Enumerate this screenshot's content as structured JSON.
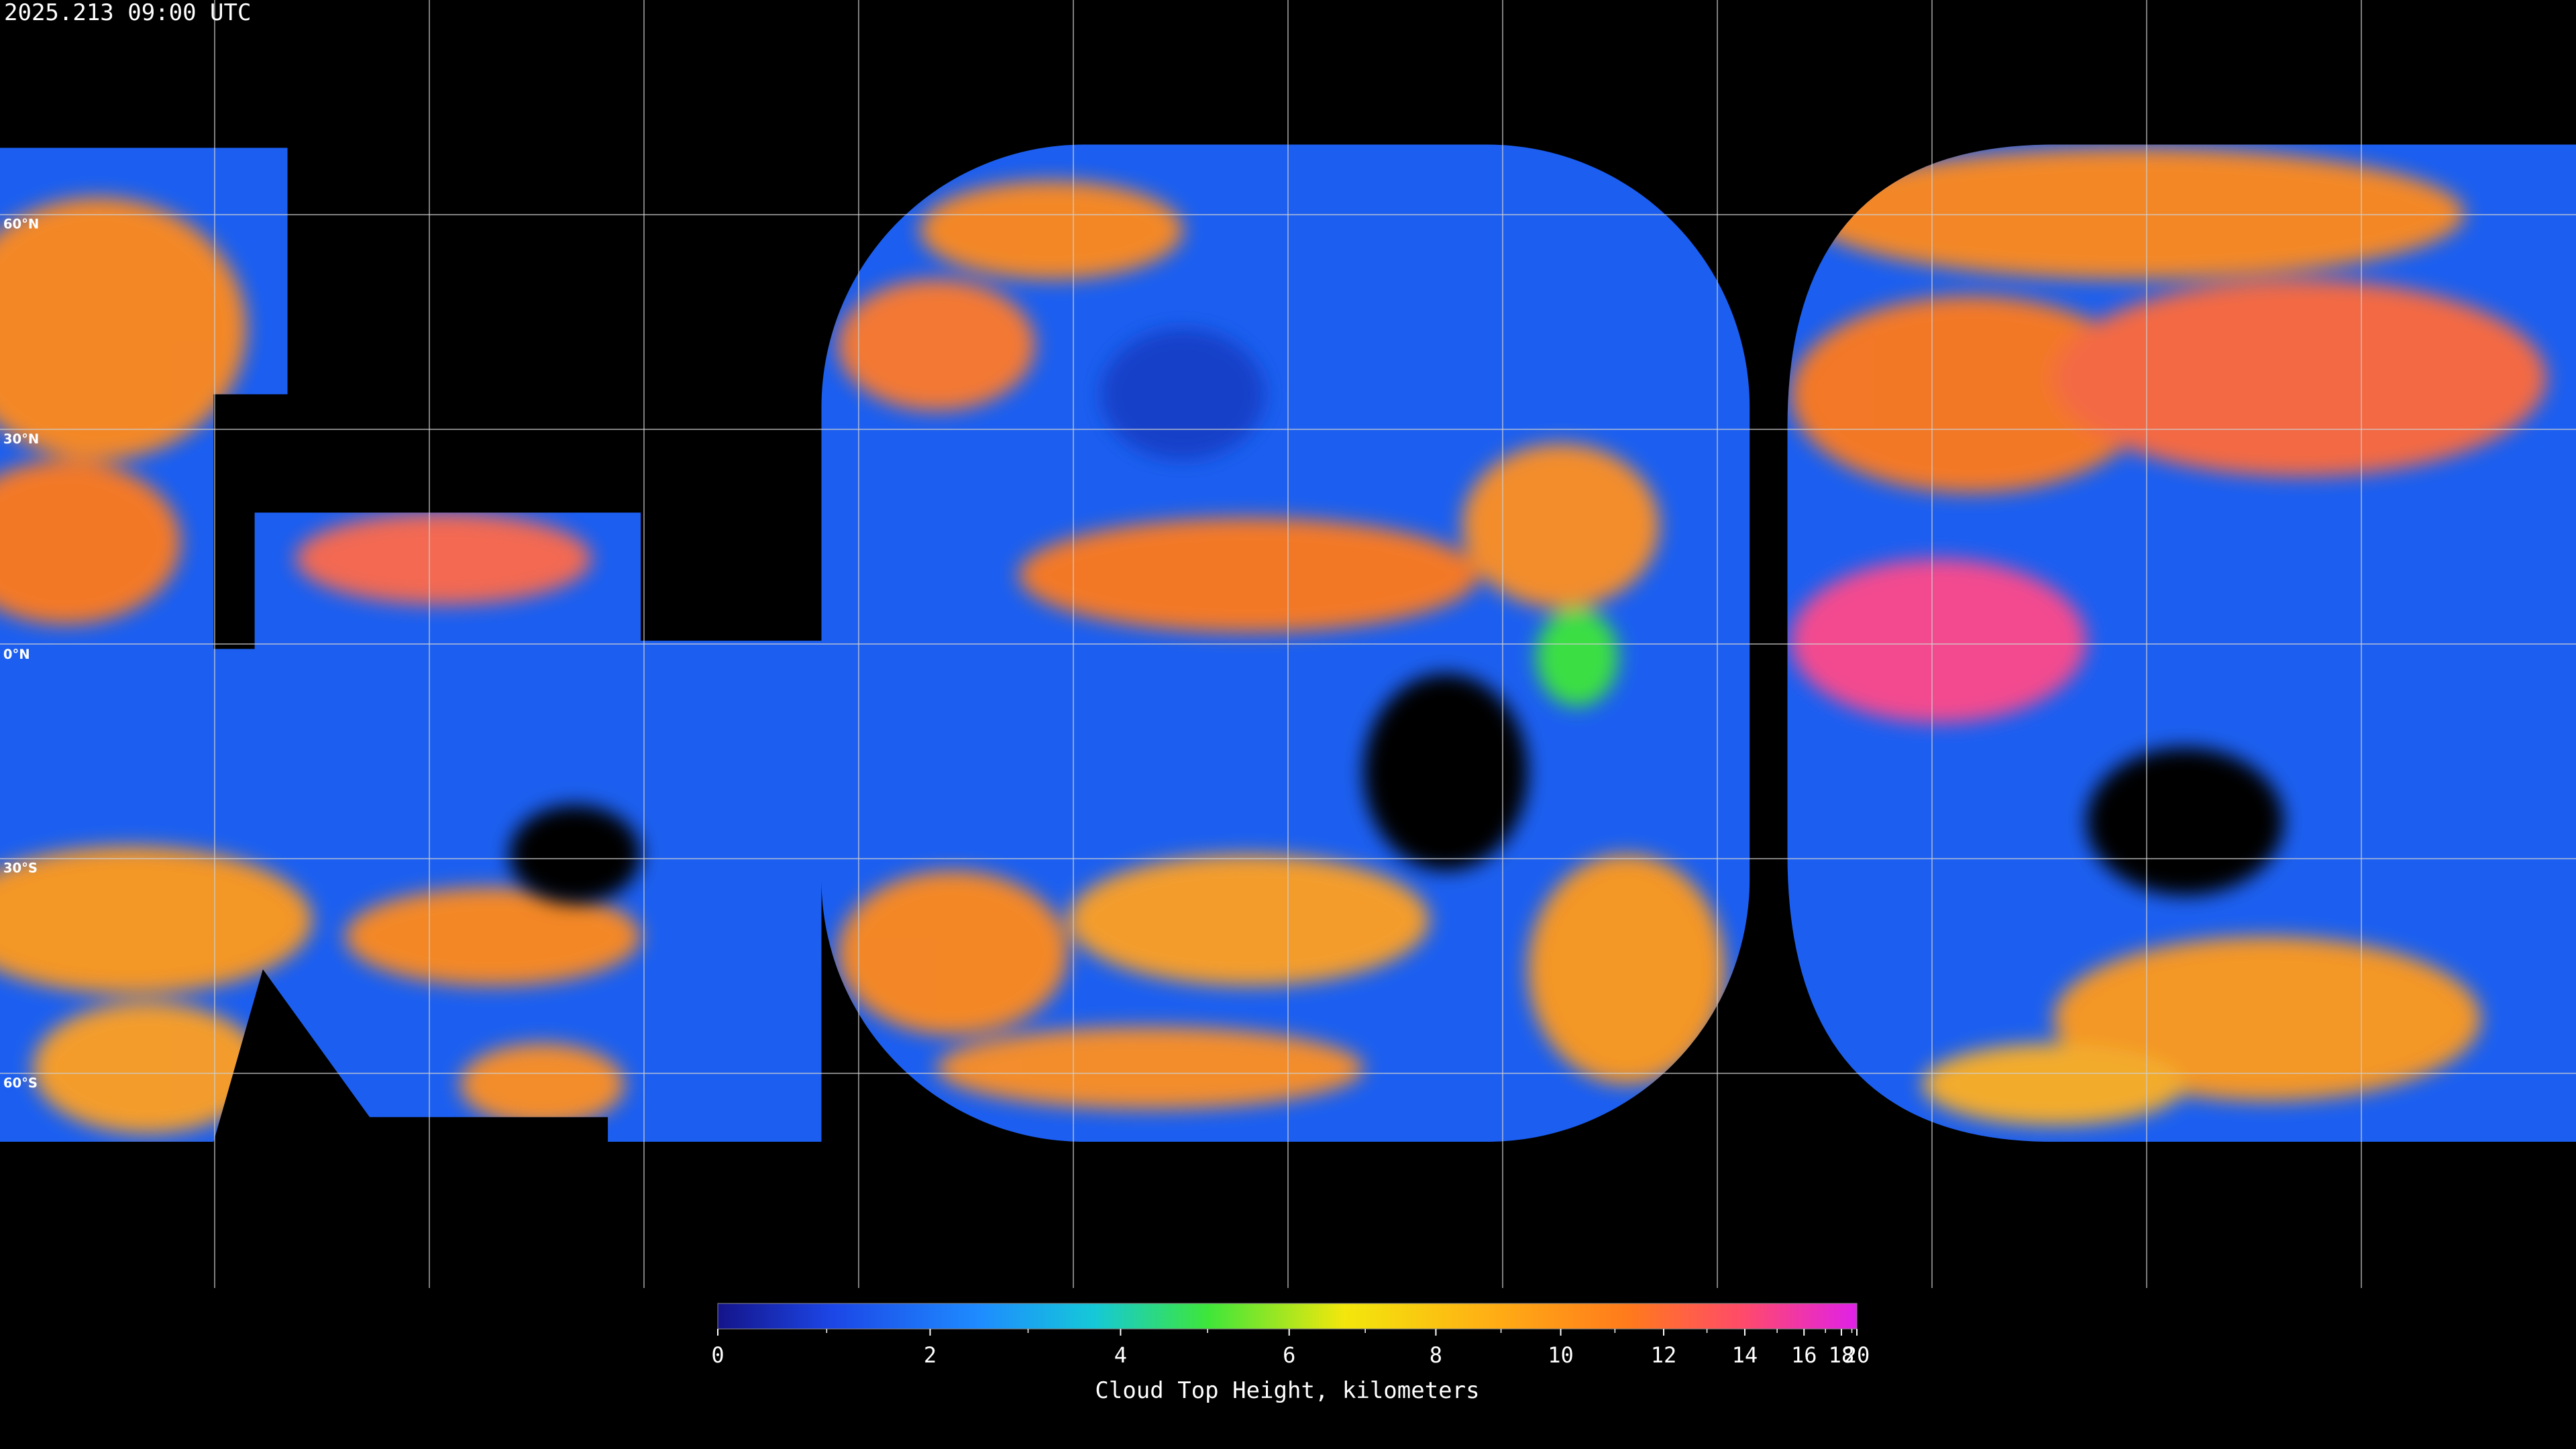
{
  "header": {
    "timestamp": "2025.213 09:00 UTC"
  },
  "map": {
    "latitude_labels": [
      "60°N",
      "30°N",
      "0°N",
      "30°S",
      "60°S"
    ]
  },
  "colorbar": {
    "title": "Cloud Top Height, kilometers",
    "clim": [
      0,
      20
    ],
    "ticks": [
      0,
      2,
      4,
      6,
      8,
      10,
      12,
      14,
      16,
      18,
      20
    ],
    "minor_ticks": [
      1,
      3,
      5,
      7,
      9,
      11,
      13,
      15,
      17,
      19
    ]
  }
}
